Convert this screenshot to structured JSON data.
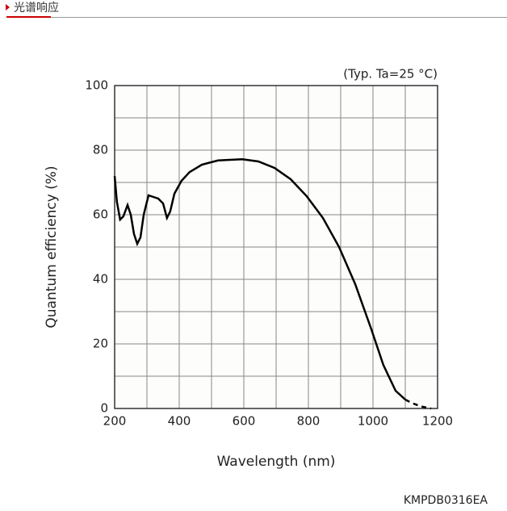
{
  "header": {
    "title": "光谱响应"
  },
  "footer": {
    "code": "KMPDB0316EA"
  },
  "chart_data": {
    "type": "line",
    "annotation": "(Typ. Ta=25 °C)",
    "x_label": "Wavelength (nm)",
    "y_label": "Quantum efficiency (%)",
    "xlim": [
      200,
      1200
    ],
    "ylim": [
      0,
      100
    ],
    "xticks": [
      200,
      400,
      600,
      800,
      1000,
      1200
    ],
    "yticks": [
      0,
      20,
      40,
      60,
      80,
      100
    ],
    "xminorticks": [
      300,
      500,
      700,
      900,
      1100
    ],
    "yminorticks": [
      10,
      30,
      50,
      70,
      90
    ],
    "grid": true,
    "series": [
      {
        "color": "#000000",
        "dashed": false,
        "x": [
          200,
          207,
          217,
          227,
          240,
          250,
          260,
          270,
          280,
          290,
          305,
          320,
          335,
          350,
          362,
          372,
          385,
          407,
          432,
          470,
          520,
          595,
          645,
          695,
          745,
          795,
          845,
          895,
          945,
          995,
          1032,
          1070,
          1100
        ],
        "values": [
          72,
          64,
          58.5,
          59.5,
          63,
          60,
          54,
          51,
          53,
          60,
          66,
          65.5,
          65,
          63.5,
          59,
          61,
          66.5,
          70.5,
          73.2,
          75.5,
          76.8,
          77.2,
          76.5,
          74.5,
          71,
          65.7,
          59,
          50,
          38.5,
          24.5,
          13.5,
          5.5,
          2.75
        ]
      },
      {
        "color": "#000000",
        "dashed": true,
        "x": [
          1100,
          1120,
          1150,
          1180
        ],
        "values": [
          2.75,
          1.7,
          0.6,
          0
        ]
      }
    ]
  }
}
